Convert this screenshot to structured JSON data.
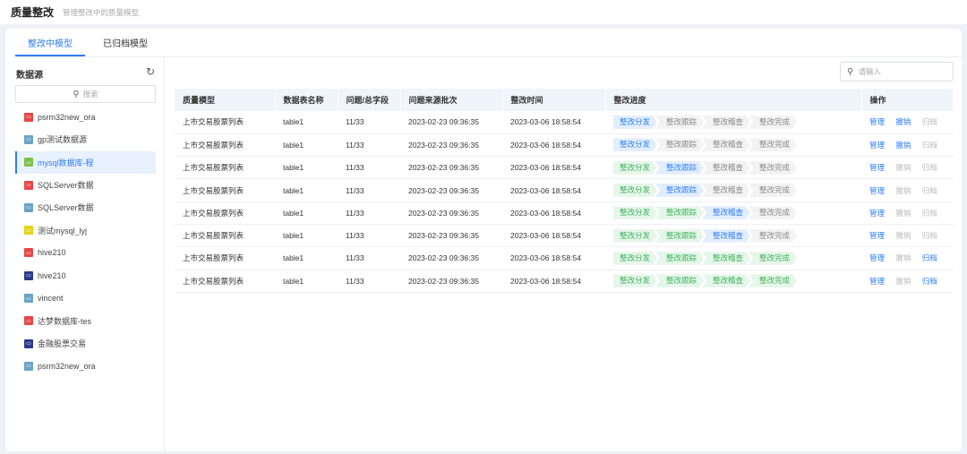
{
  "header": {
    "title": "质量整改",
    "subtitle": "管理整改中的质量模型"
  },
  "tabs": [
    {
      "label": "整改中模型",
      "active": true
    },
    {
      "label": "已归档模型",
      "active": false
    }
  ],
  "sidebar": {
    "title": "数据源",
    "search_placeholder": "搜索",
    "items": [
      {
        "label": "psrm32new_ora",
        "icon": "oracle-icon",
        "color": "#e84545"
      },
      {
        "label": "gp测试数据源",
        "icon": "greenplum-icon",
        "color": "#6aa3c8"
      },
      {
        "label": "mysql数据库-程",
        "icon": "mysql-icon",
        "color": "#7cc243",
        "selected": true
      },
      {
        "label": "SQLServer数据",
        "icon": "sqlserver-icon",
        "color": "#e84545"
      },
      {
        "label": "SQLServer数据",
        "icon": "greenplum-icon",
        "color": "#6aa3c8"
      },
      {
        "label": "测试mysql_lyj",
        "icon": "db-icon",
        "color": "#e6d21a"
      },
      {
        "label": "hive210",
        "icon": "oracle-icon",
        "color": "#e84545"
      },
      {
        "label": "hive210",
        "icon": "hive-icon",
        "color": "#2b3a8f"
      },
      {
        "label": "vincent",
        "icon": "greenplum-icon",
        "color": "#6aa3c8"
      },
      {
        "label": "达梦数据库-tes",
        "icon": "oracle-icon",
        "color": "#e84545"
      },
      {
        "label": "金融股票交易",
        "icon": "hive-icon",
        "color": "#2b3a8f"
      },
      {
        "label": "psrm32new_ora",
        "icon": "greenplum-icon",
        "color": "#6aa3c8"
      }
    ]
  },
  "search": {
    "placeholder": "请输入"
  },
  "table": {
    "columns": [
      "质量模型",
      "数据表名称",
      "问题/总字段",
      "问题来源批次",
      "整改时间",
      "整改进度",
      "操作"
    ],
    "steps": [
      "整改分发",
      "整改跟踪",
      "整改稽查",
      "整改完成"
    ],
    "actions": [
      "管理",
      "撤销",
      "归档"
    ],
    "rows": [
      {
        "model": "上市交易股票列表",
        "table": "table1",
        "issues": "11/33",
        "batch": "2023-02-23 09:36:35",
        "time": "2023-03-06 18:58:54",
        "current_step": 0,
        "revoke_enabled": true,
        "archive_enabled": false
      },
      {
        "model": "上市交易股票列表",
        "table": "table1",
        "issues": "11/33",
        "batch": "2023-02-23 09:36:35",
        "time": "2023-03-06 18:58:54",
        "current_step": 0,
        "revoke_enabled": true,
        "archive_enabled": false
      },
      {
        "model": "上市交易股票列表",
        "table": "table1",
        "issues": "11/33",
        "batch": "2023-02-23 09:36:35",
        "time": "2023-03-06 18:58:54",
        "current_step": 1,
        "revoke_enabled": false,
        "archive_enabled": false
      },
      {
        "model": "上市交易股票列表",
        "table": "table1",
        "issues": "11/33",
        "batch": "2023-02-23 09:36:35",
        "time": "2023-03-06 18:58:54",
        "current_step": 1,
        "revoke_enabled": false,
        "archive_enabled": false
      },
      {
        "model": "上市交易股票列表",
        "table": "table1",
        "issues": "11/33",
        "batch": "2023-02-23 09:36:35",
        "time": "2023-03-06 18:58:54",
        "current_step": 2,
        "revoke_enabled": false,
        "archive_enabled": false
      },
      {
        "model": "上市交易股票列表",
        "table": "table1",
        "issues": "11/33",
        "batch": "2023-02-23 09:36:35",
        "time": "2023-03-06 18:58:54",
        "current_step": 2,
        "revoke_enabled": false,
        "archive_enabled": false
      },
      {
        "model": "上市交易股票列表",
        "table": "table1",
        "issues": "11/33",
        "batch": "2023-02-23 09:36:35",
        "time": "2023-03-06 18:58:54",
        "current_step": 4,
        "revoke_enabled": false,
        "archive_enabled": true
      },
      {
        "model": "上市交易股票列表",
        "table": "table1",
        "issues": "11/33",
        "batch": "2023-02-23 09:36:35",
        "time": "2023-03-06 18:58:54",
        "current_step": 4,
        "revoke_enabled": false,
        "archive_enabled": true
      }
    ]
  },
  "colors": {
    "accent": "#2f7df6",
    "done": "#3bb25a"
  }
}
